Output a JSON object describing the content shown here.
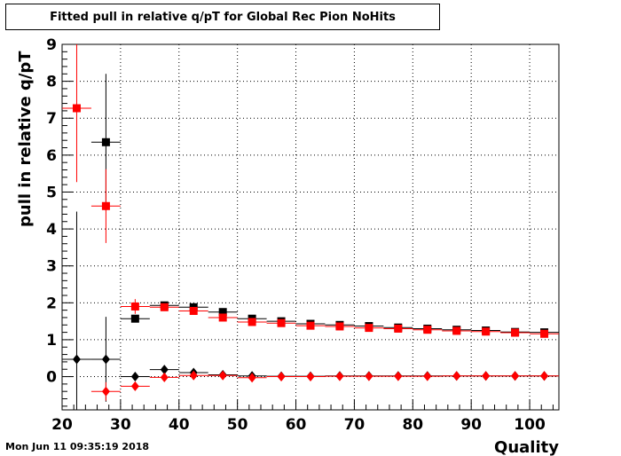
{
  "chart_data": {
    "type": "scatter",
    "title": "Fitted pull in relative q/pT for Global Rec Pion NoHits",
    "xlabel": "Quality",
    "ylabel": "pull in relative q/pT",
    "xlim": [
      20,
      105
    ],
    "ylim": [
      -0.9,
      9
    ],
    "xticks": [
      20,
      30,
      40,
      50,
      60,
      70,
      80,
      90,
      100
    ],
    "yticks": [
      0,
      1,
      2,
      3,
      4,
      5,
      6,
      7,
      8,
      9
    ],
    "grid": true,
    "series": [
      {
        "marker": "square",
        "color": "#000000",
        "x": [
          27.5,
          32.5,
          37.5,
          42.5,
          47.5,
          52.5,
          57.5,
          62.5,
          67.5,
          72.5,
          77.5,
          82.5,
          87.5,
          92.5,
          97.5,
          102.5
        ],
        "y": [
          6.35,
          1.57,
          1.93,
          1.88,
          1.75,
          1.57,
          1.5,
          1.43,
          1.4,
          1.37,
          1.33,
          1.3,
          1.27,
          1.25,
          1.21,
          1.2
        ],
        "yerr": [
          1.85,
          0.05,
          0.05,
          0.05,
          0.04,
          0.03,
          0.03,
          0.03,
          0.03,
          0.03,
          0.03,
          0.03,
          0.03,
          0.03,
          0.03,
          0.03
        ]
      },
      {
        "marker": "square",
        "color": "#ff0000",
        "x": [
          22.5,
          27.5,
          32.5,
          37.5,
          42.5,
          47.5,
          52.5,
          57.5,
          62.5,
          67.5,
          72.5,
          77.5,
          82.5,
          87.5,
          92.5,
          97.5,
          102.5
        ],
        "y": [
          7.27,
          4.62,
          1.9,
          1.88,
          1.78,
          1.6,
          1.48,
          1.45,
          1.38,
          1.36,
          1.32,
          1.3,
          1.27,
          1.24,
          1.22,
          1.19,
          1.16
        ],
        "yerr": [
          2.0,
          1.0,
          0.2,
          0.08,
          0.06,
          0.05,
          0.04,
          0.04,
          0.03,
          0.03,
          0.03,
          0.03,
          0.03,
          0.03,
          0.03,
          0.03,
          0.03
        ]
      },
      {
        "marker": "diamond",
        "color": "#000000",
        "x": [
          22.5,
          27.5,
          32.5,
          37.5,
          42.5,
          47.5,
          52.5,
          57.5,
          62.5,
          67.5,
          72.5,
          77.5,
          82.5,
          87.5,
          92.5,
          97.5,
          102.5
        ],
        "y": [
          0.47,
          0.47,
          0.0,
          0.19,
          0.11,
          0.05,
          0.02,
          0.01,
          0.01,
          0.02,
          0.02,
          0.02,
          0.02,
          0.02,
          0.02,
          0.02,
          0.02
        ],
        "yerr": [
          4.0,
          1.15,
          0.05,
          0.03,
          0.02,
          0.02,
          0.02,
          0.02,
          0.01,
          0.01,
          0.01,
          0.01,
          0.01,
          0.01,
          0.01,
          0.01,
          0.01
        ]
      },
      {
        "marker": "diamond",
        "color": "#ff0000",
        "x": [
          27.5,
          32.5,
          37.5,
          42.5,
          47.5,
          52.5,
          57.5,
          62.5,
          67.5,
          72.5,
          77.5,
          82.5,
          87.5,
          92.5,
          97.5,
          102.5
        ],
        "y": [
          -0.4,
          -0.26,
          -0.02,
          0.03,
          0.03,
          -0.03,
          0.0,
          0.0,
          0.01,
          0.01,
          0.01,
          0.01,
          0.02,
          0.02,
          0.02,
          0.02
        ],
        "yerr": [
          0.25,
          0.1,
          0.04,
          0.03,
          0.02,
          0.02,
          0.02,
          0.01,
          0.01,
          0.01,
          0.01,
          0.01,
          0.01,
          0.01,
          0.01,
          0.01
        ]
      }
    ],
    "xerr_halfwidth": 2.5
  },
  "timestamp": "Mon Jun 11 09:35:19 2018"
}
